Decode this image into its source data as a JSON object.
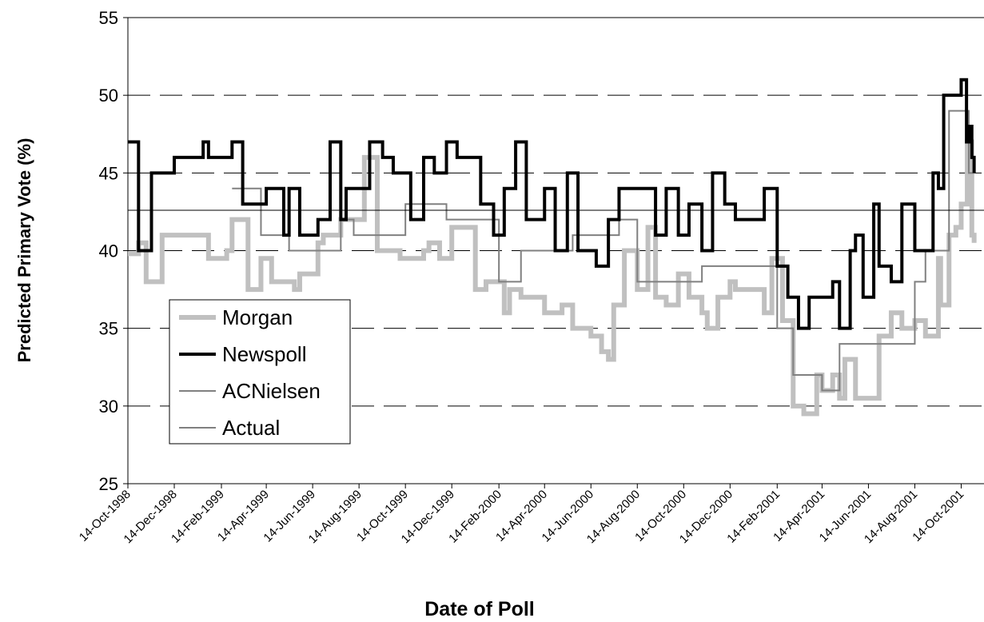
{
  "chart_data": {
    "type": "step",
    "y_label": "Predicted Primary Vote (%)",
    "x_label": "Date of Poll",
    "ylim": [
      25,
      55
    ],
    "yticks": [
      25,
      30,
      35,
      40,
      45,
      50,
      55
    ],
    "xlim": [
      "1998-10-14",
      "2001-11-13"
    ],
    "xticks": [
      {
        "value": "1998-10-14",
        "label": "14-Oct-1998"
      },
      {
        "value": "1998-12-14",
        "label": "14-Dec-1998"
      },
      {
        "value": "1999-02-14",
        "label": "14-Feb-1999"
      },
      {
        "value": "1999-04-14",
        "label": "14-Apr-1999"
      },
      {
        "value": "1999-06-14",
        "label": "14-Jun-1999"
      },
      {
        "value": "1999-08-14",
        "label": "14-Aug-1999"
      },
      {
        "value": "1999-10-14",
        "label": "14-Oct-1999"
      },
      {
        "value": "1999-12-14",
        "label": "14-Dec-1999"
      },
      {
        "value": "2000-02-14",
        "label": "14-Feb-2000"
      },
      {
        "value": "2000-04-14",
        "label": "14-Apr-2000"
      },
      {
        "value": "2000-06-14",
        "label": "14-Jun-2000"
      },
      {
        "value": "2000-08-14",
        "label": "14-Aug-2000"
      },
      {
        "value": "2000-10-14",
        "label": "14-Oct-2000"
      },
      {
        "value": "2000-12-14",
        "label": "14-Dec-2000"
      },
      {
        "value": "2001-02-14",
        "label": "14-Feb-2001"
      },
      {
        "value": "2001-04-14",
        "label": "14-Apr-2001"
      },
      {
        "value": "2001-06-14",
        "label": "14-Jun-2001"
      },
      {
        "value": "2001-08-14",
        "label": "14-Aug-2001"
      },
      {
        "value": "2001-10-14",
        "label": "14-Oct-2001"
      }
    ],
    "grid": true,
    "legend": "lower-left",
    "series": [
      {
        "name": "Morgan",
        "color": "#c0c0c0",
        "width": 6,
        "x": [
          "1998-10-14",
          "1998-10-28",
          "1998-11-07",
          "1998-11-28",
          "1999-01-28",
          "1999-02-21",
          "1999-02-28",
          "1999-03-21",
          "1999-04-07",
          "1999-04-21",
          "1999-05-21",
          "1999-05-28",
          "1999-06-21",
          "1999-06-28",
          "1999-07-21",
          "1999-08-21",
          "1999-09-07",
          "1999-10-07",
          "1999-11-07",
          "1999-11-14",
          "1999-11-28",
          "1999-12-14",
          "2000-01-14",
          "2000-01-28",
          "2000-02-21",
          "2000-02-28",
          "2000-03-14",
          "2000-04-14",
          "2000-05-07",
          "2000-05-21",
          "2000-06-14",
          "2000-06-28",
          "2000-07-07",
          "2000-07-14",
          "2000-07-28",
          "2000-08-14",
          "2000-08-28",
          "2000-09-07",
          "2000-09-21",
          "2000-10-07",
          "2000-10-21",
          "2000-11-07",
          "2000-11-14",
          "2000-11-28",
          "2000-12-14",
          "2000-12-21",
          "2001-01-28",
          "2001-02-07",
          "2001-02-21",
          "2001-03-07",
          "2001-03-21",
          "2001-04-07",
          "2001-04-14",
          "2001-04-28",
          "2001-05-07",
          "2001-05-14",
          "2001-05-28",
          "2001-06-28",
          "2001-07-14",
          "2001-07-28",
          "2001-08-14",
          "2001-08-28",
          "2001-09-14",
          "2001-09-17",
          "2001-09-28",
          "2001-10-07",
          "2001-10-14",
          "2001-10-22",
          "2001-10-28",
          "2001-10-31"
        ],
        "values": [
          39.8,
          40.5,
          38,
          41,
          39.5,
          40,
          42,
          37.5,
          39.5,
          38,
          37.5,
          38.5,
          40.5,
          41,
          42,
          46,
          40,
          39.5,
          40,
          40.5,
          39.5,
          41.5,
          37.5,
          38,
          36,
          37.5,
          37,
          36,
          36.5,
          35,
          34.5,
          33.5,
          33,
          36.5,
          40,
          37.5,
          41.5,
          37,
          36.5,
          38.5,
          37,
          36,
          35,
          37,
          38,
          37.5,
          36,
          39.5,
          35.5,
          30,
          29.5,
          32,
          31,
          32,
          30.5,
          33,
          30.5,
          34.5,
          36,
          35,
          35.5,
          34.5,
          39.5,
          36.5,
          41,
          41.5,
          43,
          47,
          41,
          40.5
        ]
      },
      {
        "name": "Newspoll",
        "color": "#000000",
        "width": 4,
        "x": [
          "1998-10-14",
          "1998-10-28",
          "1998-11-14",
          "1998-12-14",
          "1999-01-21",
          "1999-01-28",
          "1999-02-28",
          "1999-03-14",
          "1999-04-14",
          "1999-05-07",
          "1999-05-14",
          "1999-05-28",
          "1999-06-21",
          "1999-07-07",
          "1999-07-21",
          "1999-07-28",
          "1999-08-28",
          "1999-09-14",
          "1999-09-28",
          "1999-10-21",
          "1999-11-07",
          "1999-11-21",
          "1999-12-07",
          "1999-12-21",
          "2000-01-21",
          "2000-02-07",
          "2000-02-21",
          "2000-03-07",
          "2000-03-21",
          "2000-04-14",
          "2000-04-28",
          "2000-05-14",
          "2000-05-28",
          "2000-06-21",
          "2000-07-07",
          "2000-07-21",
          "2000-09-07",
          "2000-09-21",
          "2000-10-07",
          "2000-10-21",
          "2000-11-07",
          "2000-11-21",
          "2000-12-07",
          "2000-12-21",
          "2001-01-28",
          "2001-02-14",
          "2001-02-28",
          "2001-03-14",
          "2001-03-28",
          "2001-04-28",
          "2001-05-07",
          "2001-05-21",
          "2001-05-28",
          "2001-06-07",
          "2001-06-21",
          "2001-06-28",
          "2001-07-14",
          "2001-07-28",
          "2001-08-14",
          "2001-09-07",
          "2001-09-14",
          "2001-09-21",
          "2001-10-14",
          "2001-10-21",
          "2001-10-24",
          "2001-10-28",
          "2001-10-31"
        ],
        "values": [
          47,
          40,
          45,
          46,
          47,
          46,
          47,
          43,
          44,
          41,
          44,
          41,
          42,
          47,
          42,
          44,
          47,
          46,
          45,
          42,
          46,
          45,
          47,
          46,
          43,
          41,
          44,
          47,
          42,
          44,
          40,
          45,
          40,
          39,
          42,
          44,
          41,
          44,
          41,
          43,
          40,
          45,
          43,
          42,
          44,
          39,
          37,
          35,
          37,
          38,
          35,
          40,
          41,
          37,
          43,
          39,
          38,
          43,
          40,
          45,
          44,
          50,
          51,
          47,
          48,
          46,
          45
        ]
      },
      {
        "name": "ACNielsen",
        "color": "#808080",
        "width": 2,
        "x": [
          "1999-02-28",
          "1999-04-07",
          "1999-05-14",
          "1999-07-21",
          "1999-08-07",
          "1999-10-14",
          "1999-12-07",
          "2000-02-14",
          "2000-03-14",
          "2000-05-21",
          "2000-07-21",
          "2000-08-14",
          "2000-11-07",
          "2001-02-14",
          "2001-03-07",
          "2001-04-14",
          "2001-05-07",
          "2001-08-14",
          "2001-08-28",
          "2001-09-28",
          "2001-10-24",
          "2001-10-31"
        ],
        "values": [
          44,
          41,
          40,
          42,
          41,
          43,
          42,
          38,
          40,
          41,
          42,
          38,
          39,
          35,
          32,
          31,
          34,
          38,
          40,
          49,
          45,
          45
        ]
      },
      {
        "name": "Actual",
        "color": "#000000",
        "width": 1,
        "x": [
          "1998-10-14",
          "2001-11-13"
        ],
        "values": [
          42.6,
          42.6
        ]
      }
    ]
  }
}
